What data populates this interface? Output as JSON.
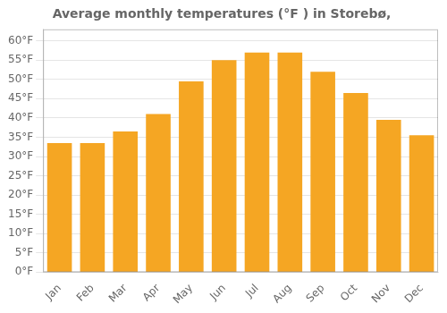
{
  "chart_data": {
    "type": "bar",
    "title": "Average monthly temperatures (°F ) in Storebø,",
    "categories": [
      "Jan",
      "Feb",
      "Mar",
      "Apr",
      "May",
      "Jun",
      "Jul",
      "Aug",
      "Sep",
      "Oct",
      "Nov",
      "Dec"
    ],
    "values": [
      33.5,
      33.5,
      36.5,
      41.0,
      49.5,
      55.0,
      57.0,
      57.0,
      52.0,
      46.5,
      39.5,
      35.5
    ],
    "color": "#F5A623",
    "ylim": [
      0,
      63
    ],
    "yticks": [
      {
        "value": 0,
        "label": "0°F"
      },
      {
        "value": 5,
        "label": "5°F"
      },
      {
        "value": 10,
        "label": "10°F"
      },
      {
        "value": 15,
        "label": "15°F"
      },
      {
        "value": 20,
        "label": "20°F"
      },
      {
        "value": 25,
        "label": "25°F"
      },
      {
        "value": 30,
        "label": "30°F"
      },
      {
        "value": 35,
        "label": "35°F"
      },
      {
        "value": 40,
        "label": "40°F"
      },
      {
        "value": 45,
        "label": "45°F"
      },
      {
        "value": 50,
        "label": "50°F"
      },
      {
        "value": 55,
        "label": "55°F"
      },
      {
        "value": 60,
        "label": "60°F"
      }
    ],
    "grid": true
  }
}
